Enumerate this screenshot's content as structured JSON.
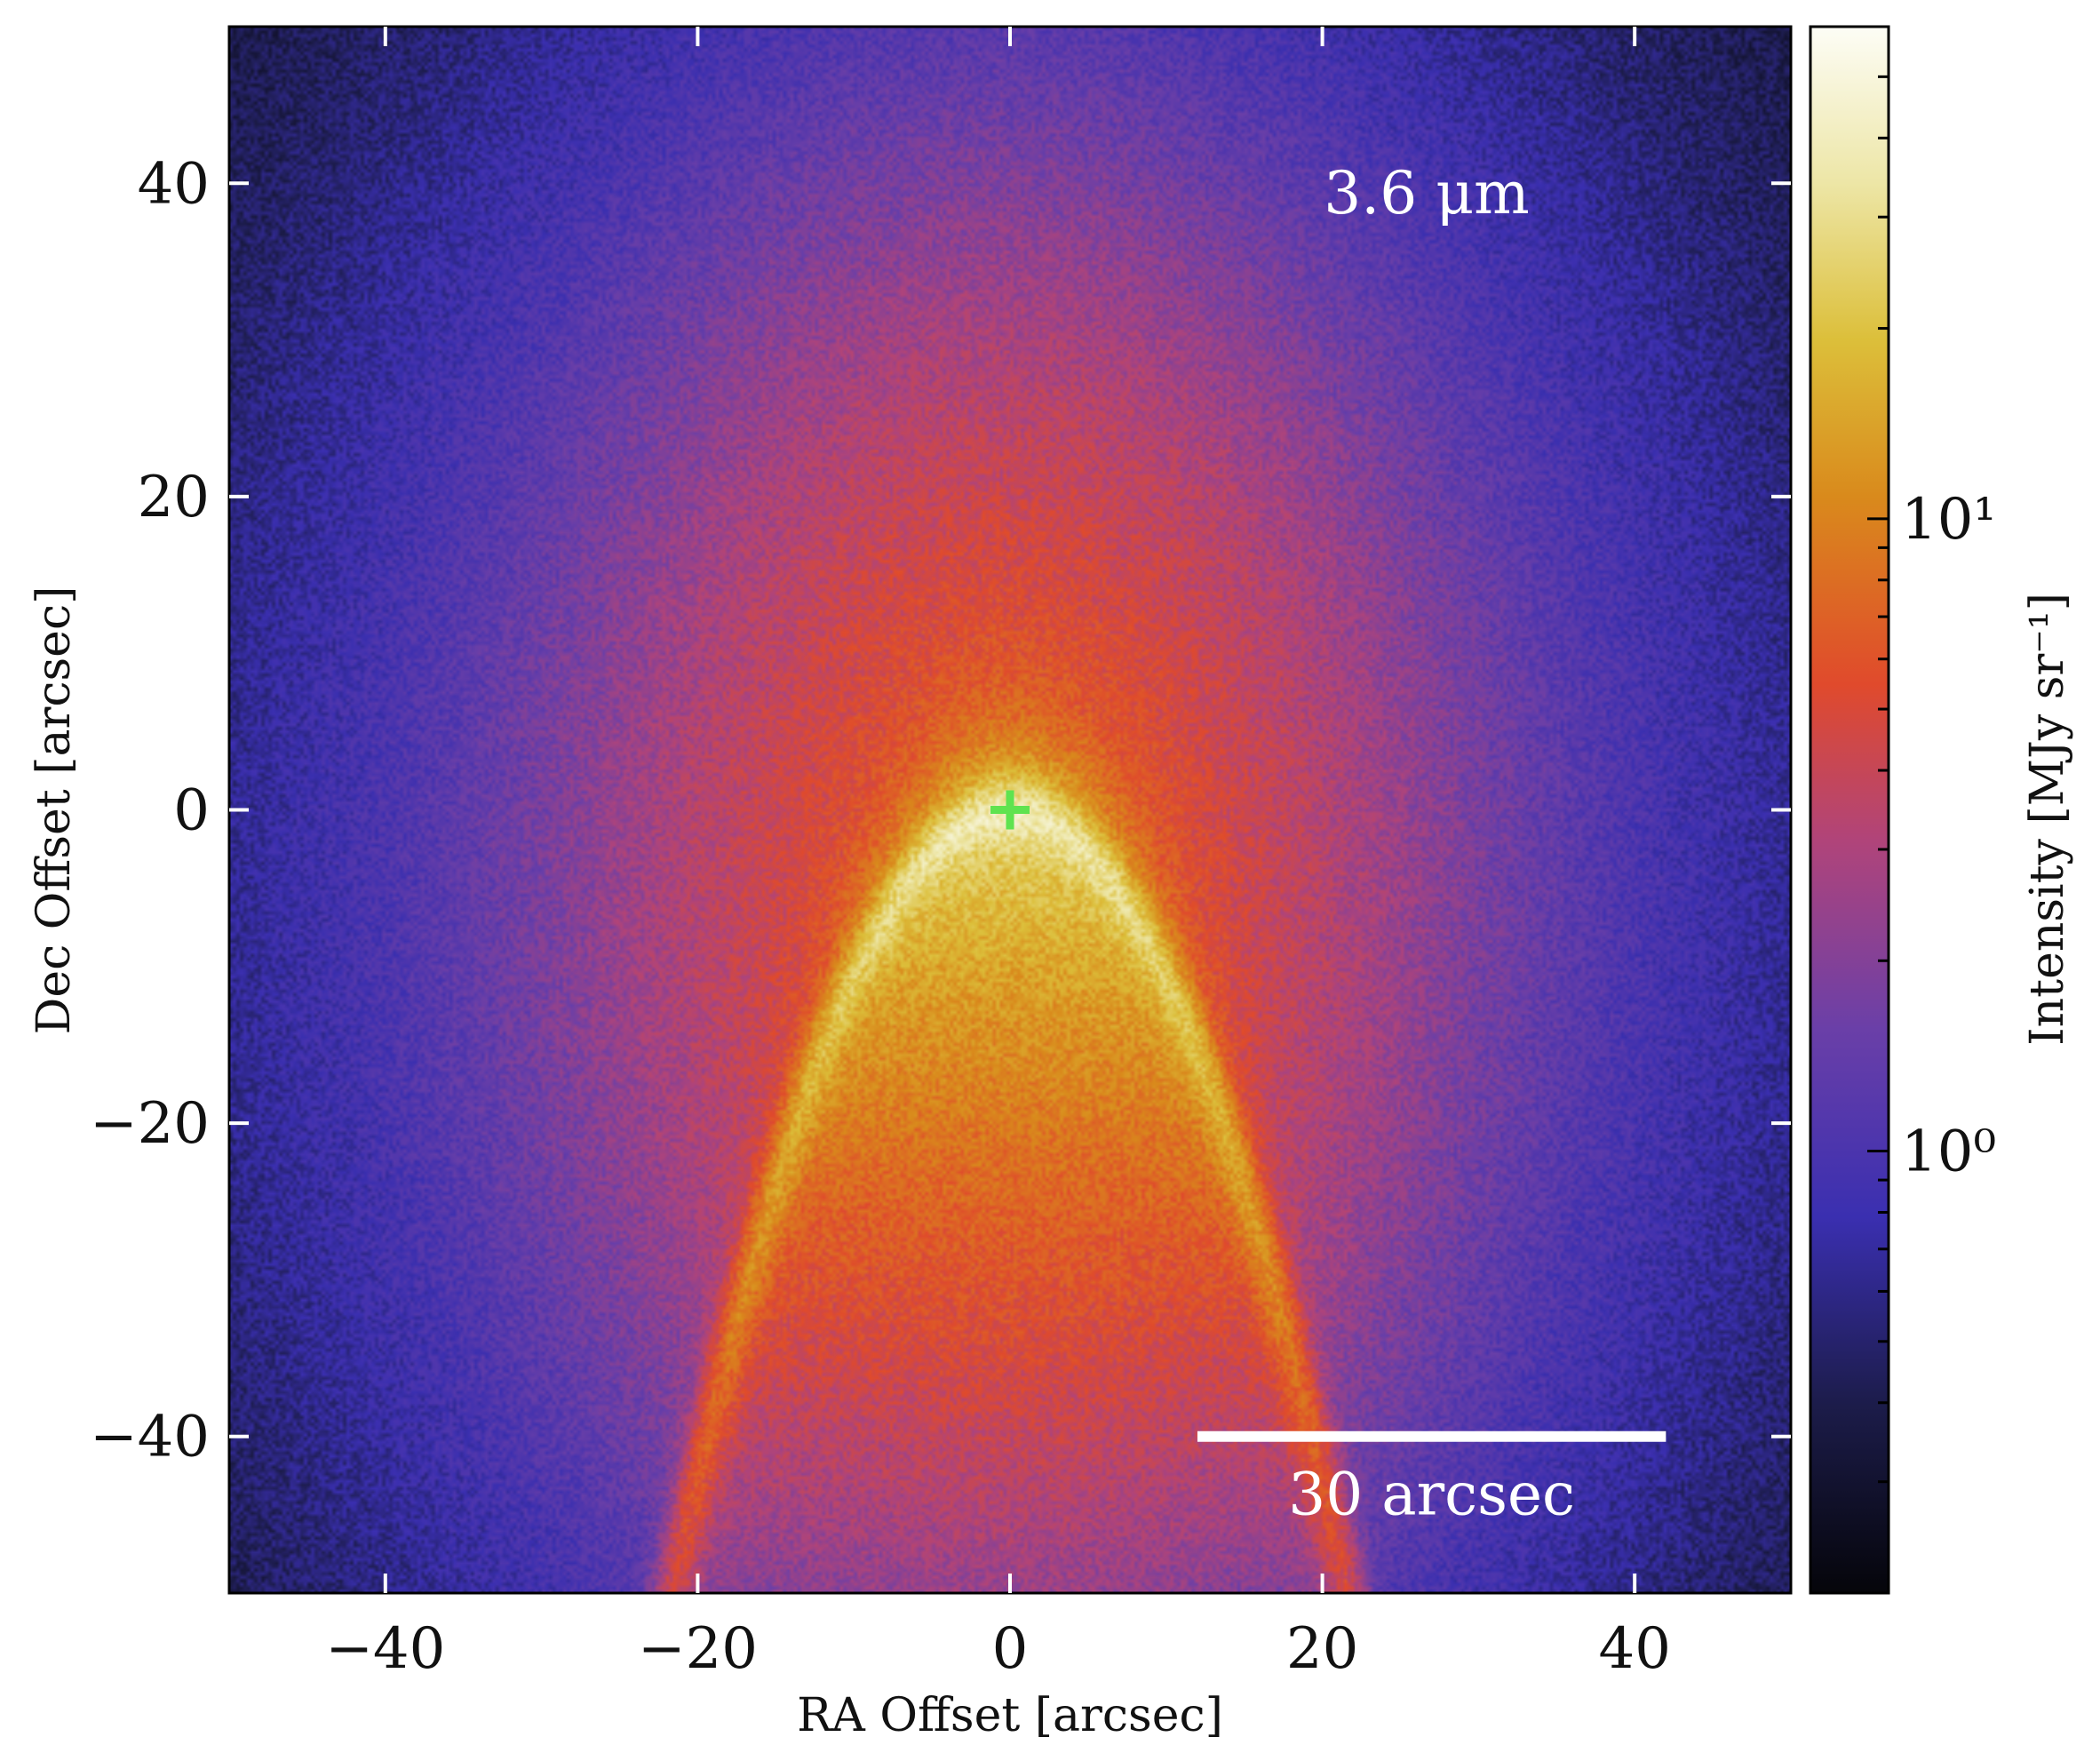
{
  "chart_data": {
    "type": "heatmap",
    "title": "",
    "xlabel": "RA Offset [arcsec]",
    "ylabel": "Dec Offset [arcsec]",
    "xlim": [
      -50,
      50
    ],
    "ylim": [
      -50,
      50
    ],
    "x_ticks": [
      -40,
      -20,
      0,
      20,
      40
    ],
    "y_ticks": [
      -40,
      -20,
      0,
      20,
      40
    ],
    "x_tick_labels": [
      "−40",
      "−20",
      "0",
      "20",
      "40"
    ],
    "y_tick_labels": [
      "−40",
      "−20",
      "0",
      "20",
      "40"
    ],
    "band_label": "3.6 μm",
    "scale_bar": {
      "length_arcsec": 30,
      "x_start": 12,
      "x_end": 42,
      "y": -40,
      "label": "30 arcsec"
    },
    "source_marker": {
      "x": 0,
      "y": 0,
      "symbol": "+",
      "color": "#5fe34f"
    },
    "colorbar": {
      "label": "Intensity [MJy sr⁻¹]",
      "scale": "log",
      "cmap": "CMRmap",
      "range": [
        0.2,
        60
      ],
      "major_ticks": [
        1,
        10
      ],
      "major_tick_labels": [
        "10⁰",
        "10¹"
      ],
      "minor_ticks": [
        0.3,
        0.4,
        0.5,
        0.6,
        0.7,
        0.8,
        0.9,
        2,
        3,
        4,
        5,
        6,
        7,
        8,
        9,
        20,
        30,
        40,
        50
      ]
    },
    "image_model": {
      "description_free_params": true,
      "apex": [
        0,
        0
      ],
      "ridge_curvature_1_per_arcsec": 0.107,
      "peak_intensity": 40,
      "background_intensity": 0.3
    }
  }
}
